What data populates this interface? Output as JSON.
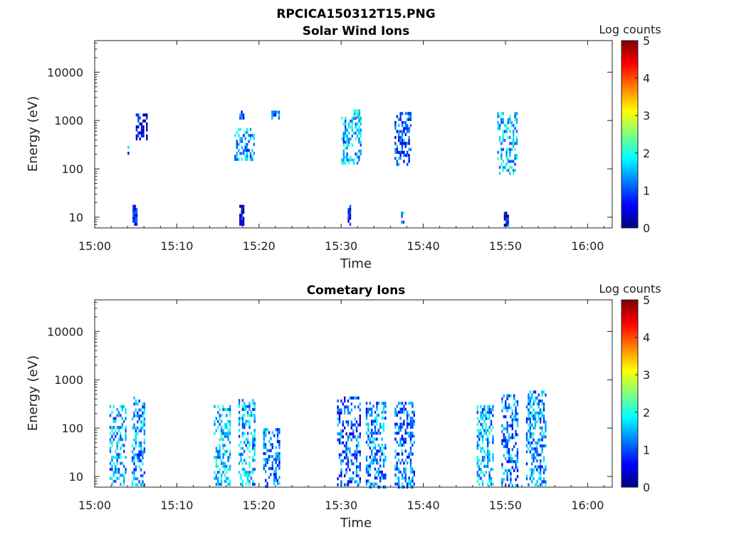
{
  "figure": {
    "title": "RPCICA150312T15.PNG"
  },
  "chart_data": [
    {
      "type": "heatmap",
      "title": "Solar Wind Ions",
      "xlabel": "Time",
      "ylabel": "Energy (eV)",
      "x_ticks": [
        "15:00",
        "15:10",
        "15:20",
        "15:30",
        "15:40",
        "15:50",
        "16:00"
      ],
      "x_range_min": [
        0,
        63
      ],
      "y_ticks": [
        "10",
        "100",
        "1000",
        "10000"
      ],
      "y_scale": "log",
      "y_range_ev": [
        6,
        45000
      ],
      "colorbar": {
        "label": "Log counts",
        "ticks": [
          "0",
          "1",
          "2",
          "3",
          "4",
          "5"
        ],
        "range": [
          0,
          5
        ],
        "colormap": "jet"
      },
      "clusters": [
        {
          "t": [
            4.0,
            4.3
          ],
          "e": [
            200,
            300
          ],
          "v": 1.3
        },
        {
          "t": [
            5.0,
            6.5
          ],
          "e": [
            380,
            1400
          ],
          "v": 0.4
        },
        {
          "t": [
            4.6,
            5.2
          ],
          "e": [
            7,
            18
          ],
          "v": 0.6
        },
        {
          "t": [
            17.0,
            19.5
          ],
          "e": [
            150,
            700
          ],
          "v": 1.4
        },
        {
          "t": [
            17.6,
            18.3
          ],
          "e": [
            1100,
            1600
          ],
          "v": 1.0
        },
        {
          "t": [
            21.5,
            22.5
          ],
          "e": [
            1100,
            1600
          ],
          "v": 1.4
        },
        {
          "t": [
            17.6,
            18.2
          ],
          "e": [
            7,
            18
          ],
          "v": 0.5
        },
        {
          "t": [
            30.0,
            32.5
          ],
          "e": [
            130,
            1200
          ],
          "v": 1.5
        },
        {
          "t": [
            31.5,
            32.3
          ],
          "e": [
            1100,
            1700
          ],
          "v": 1.8
        },
        {
          "t": [
            30.8,
            31.3
          ],
          "e": [
            7,
            18
          ],
          "v": 0.5
        },
        {
          "t": [
            36.5,
            38.5
          ],
          "e": [
            120,
            1500
          ],
          "v": 1.0
        },
        {
          "t": [
            37.3,
            37.7
          ],
          "e": [
            7,
            13
          ],
          "v": 1.6
        },
        {
          "t": [
            49.0,
            51.5
          ],
          "e": [
            80,
            1500
          ],
          "v": 1.6
        },
        {
          "t": [
            49.8,
            50.4
          ],
          "e": [
            6,
            13
          ],
          "v": 0.6
        }
      ]
    },
    {
      "type": "heatmap",
      "title": "Cometary Ions",
      "xlabel": "Time",
      "ylabel": "Energy (eV)",
      "x_ticks": [
        "15:00",
        "15:10",
        "15:20",
        "15:30",
        "15:40",
        "15:50",
        "16:00"
      ],
      "x_range_min": [
        0,
        63
      ],
      "y_ticks": [
        "10",
        "100",
        "1000",
        "10000"
      ],
      "y_scale": "log",
      "y_range_ev": [
        6,
        45000
      ],
      "colorbar": {
        "label": "Log counts",
        "ticks": [
          "0",
          "1",
          "2",
          "3",
          "4",
          "5"
        ],
        "range": [
          0,
          5
        ],
        "colormap": "jet"
      },
      "clusters": [
        {
          "t": [
            1.8,
            3.8
          ],
          "e": [
            6,
            300
          ],
          "v": 1.5
        },
        {
          "t": [
            4.5,
            6.2
          ],
          "e": [
            6,
            450
          ],
          "v": 1.4
        },
        {
          "t": [
            14.5,
            16.5
          ],
          "e": [
            6,
            300
          ],
          "v": 1.6
        },
        {
          "t": [
            17.5,
            19.5
          ],
          "e": [
            6,
            400
          ],
          "v": 1.5
        },
        {
          "t": [
            20.5,
            22.5
          ],
          "e": [
            6,
            100
          ],
          "v": 1.1
        },
        {
          "t": [
            29.5,
            32.5
          ],
          "e": [
            6,
            450
          ],
          "v": 1.0
        },
        {
          "t": [
            33.0,
            35.5
          ],
          "e": [
            6,
            350
          ],
          "v": 1.3
        },
        {
          "t": [
            36.5,
            39.0
          ],
          "e": [
            6,
            350
          ],
          "v": 1.2
        },
        {
          "t": [
            46.5,
            48.5
          ],
          "e": [
            6,
            300
          ],
          "v": 1.5
        },
        {
          "t": [
            49.5,
            51.5
          ],
          "e": [
            6,
            500
          ],
          "v": 1.2
        },
        {
          "t": [
            52.5,
            55.0
          ],
          "e": [
            6,
            600
          ],
          "v": 1.4
        }
      ]
    }
  ]
}
